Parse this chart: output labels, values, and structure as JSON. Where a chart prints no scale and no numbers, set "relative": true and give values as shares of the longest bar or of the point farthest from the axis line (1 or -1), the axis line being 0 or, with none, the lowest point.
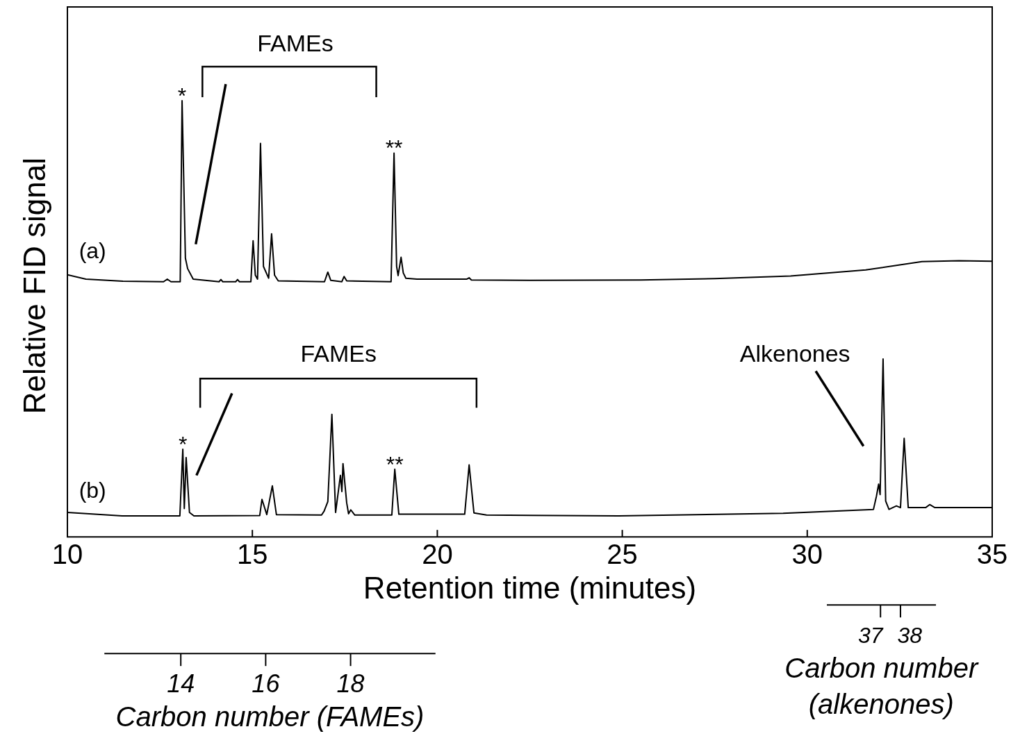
{
  "chart_data": {
    "type": "line",
    "relative": true,
    "xlabel": "Retention time (minutes)",
    "ylabel": "Relative FID signal",
    "xlim": [
      10,
      35
    ],
    "xticks": [
      10,
      15,
      20,
      25,
      30,
      35
    ],
    "tick_labels": "x",
    "x2lim": [
      12.2,
      20.0
    ],
    "x2ticks": [
      14,
      16,
      18
    ],
    "x2label": "Carbon number (FAMEs)",
    "series": [
      {
        "name": "(a)",
        "color": "#000000",
        "x": [
          10.0,
          10.5,
          11.5,
          12.6,
          12.7,
          12.8,
          13.05,
          13.1,
          13.19,
          13.25,
          13.4,
          14.1,
          14.15,
          14.2,
          14.55,
          14.6,
          14.65,
          14.96,
          15.02,
          15.08,
          15.14,
          15.22,
          15.3,
          15.44,
          15.52,
          15.6,
          15.7,
          16.95,
          17.04,
          17.12,
          17.42,
          17.48,
          17.55,
          18.75,
          18.83,
          18.9,
          18.94,
          19.02,
          19.08,
          19.15,
          19.45,
          20.8,
          20.86,
          20.92,
          22.49,
          25.5,
          27.5,
          29.55,
          31.58,
          33.1,
          34.1,
          35.0
        ],
        "values": [
          0.601,
          0.591,
          0.586,
          0.585,
          0.591,
          0.585,
          0.585,
          1.0,
          0.639,
          0.615,
          0.591,
          0.585,
          0.59,
          0.585,
          0.585,
          0.59,
          0.585,
          0.585,
          0.679,
          0.6,
          0.591,
          0.902,
          0.62,
          0.593,
          0.695,
          0.6,
          0.587,
          0.585,
          0.607,
          0.588,
          0.585,
          0.597,
          0.587,
          0.585,
          0.88,
          0.62,
          0.599,
          0.641,
          0.605,
          0.593,
          0.591,
          0.591,
          0.594,
          0.589,
          0.588,
          0.589,
          0.592,
          0.598,
          0.612,
          0.631,
          0.633,
          0.632
        ]
      },
      {
        "name": "(b)",
        "color": "#000000",
        "x": [
          10.0,
          11.48,
          13.04,
          13.12,
          13.16,
          13.21,
          13.3,
          13.42,
          15.2,
          15.26,
          15.39,
          15.54,
          15.65,
          16.87,
          16.94,
          17.04,
          17.15,
          17.25,
          17.38,
          17.42,
          17.45,
          17.55,
          17.6,
          17.66,
          17.77,
          18.77,
          18.85,
          18.96,
          20.74,
          20.86,
          20.99,
          21.33,
          24.9,
          29.35,
          31.79,
          31.87,
          31.93,
          31.97,
          32.05,
          32.12,
          32.21,
          32.41,
          32.52,
          32.62,
          32.73,
          33.2,
          33.31,
          33.45,
          35.0
        ],
        "values": [
          0.056,
          0.048,
          0.048,
          0.201,
          0.065,
          0.182,
          0.056,
          0.048,
          0.049,
          0.086,
          0.051,
          0.117,
          0.051,
          0.05,
          0.059,
          0.081,
          0.281,
          0.056,
          0.141,
          0.104,
          0.168,
          0.078,
          0.053,
          0.062,
          0.05,
          0.05,
          0.155,
          0.052,
          0.052,
          0.165,
          0.055,
          0.05,
          0.048,
          0.054,
          0.063,
          0.093,
          0.121,
          0.097,
          0.408,
          0.082,
          0.063,
          0.071,
          0.067,
          0.226,
          0.067,
          0.067,
          0.074,
          0.067,
          0.067
        ]
      }
    ],
    "annotations": [
      {
        "text": "*",
        "x": 13.1,
        "y": 1.0
      },
      {
        "text": "**",
        "x": 18.83,
        "y": 0.88
      },
      {
        "text": "*",
        "x": 13.12,
        "y": 0.201
      },
      {
        "text": "**",
        "x": 18.85,
        "y": 0.155
      },
      "FAMEs",
      "FAMEs",
      "Alkenones",
      "37",
      "38",
      "Carbon number (alkenones)"
    ]
  }
}
